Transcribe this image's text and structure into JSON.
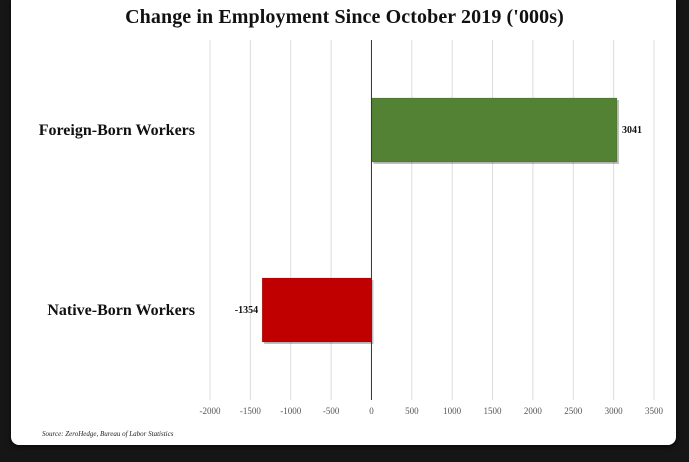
{
  "chart_data": {
    "type": "bar",
    "orientation": "horizontal",
    "title": "Change in Employment Since October 2019 ('000s)",
    "categories": [
      "Foreign-Born Workers",
      "Native-Born Workers"
    ],
    "values": [
      3041,
      -1354
    ],
    "data_labels": [
      "3041",
      "-1354"
    ],
    "xlim": [
      -2000,
      3500
    ],
    "xticks": [
      -2000,
      -1500,
      -1000,
      -500,
      0,
      500,
      1000,
      1500,
      2000,
      2500,
      3000,
      3500
    ],
    "grid": true,
    "colors": [
      "#548235",
      "#c00000"
    ],
    "source": "Source: ZeroHedge, Bureau of Labor Statistics"
  }
}
